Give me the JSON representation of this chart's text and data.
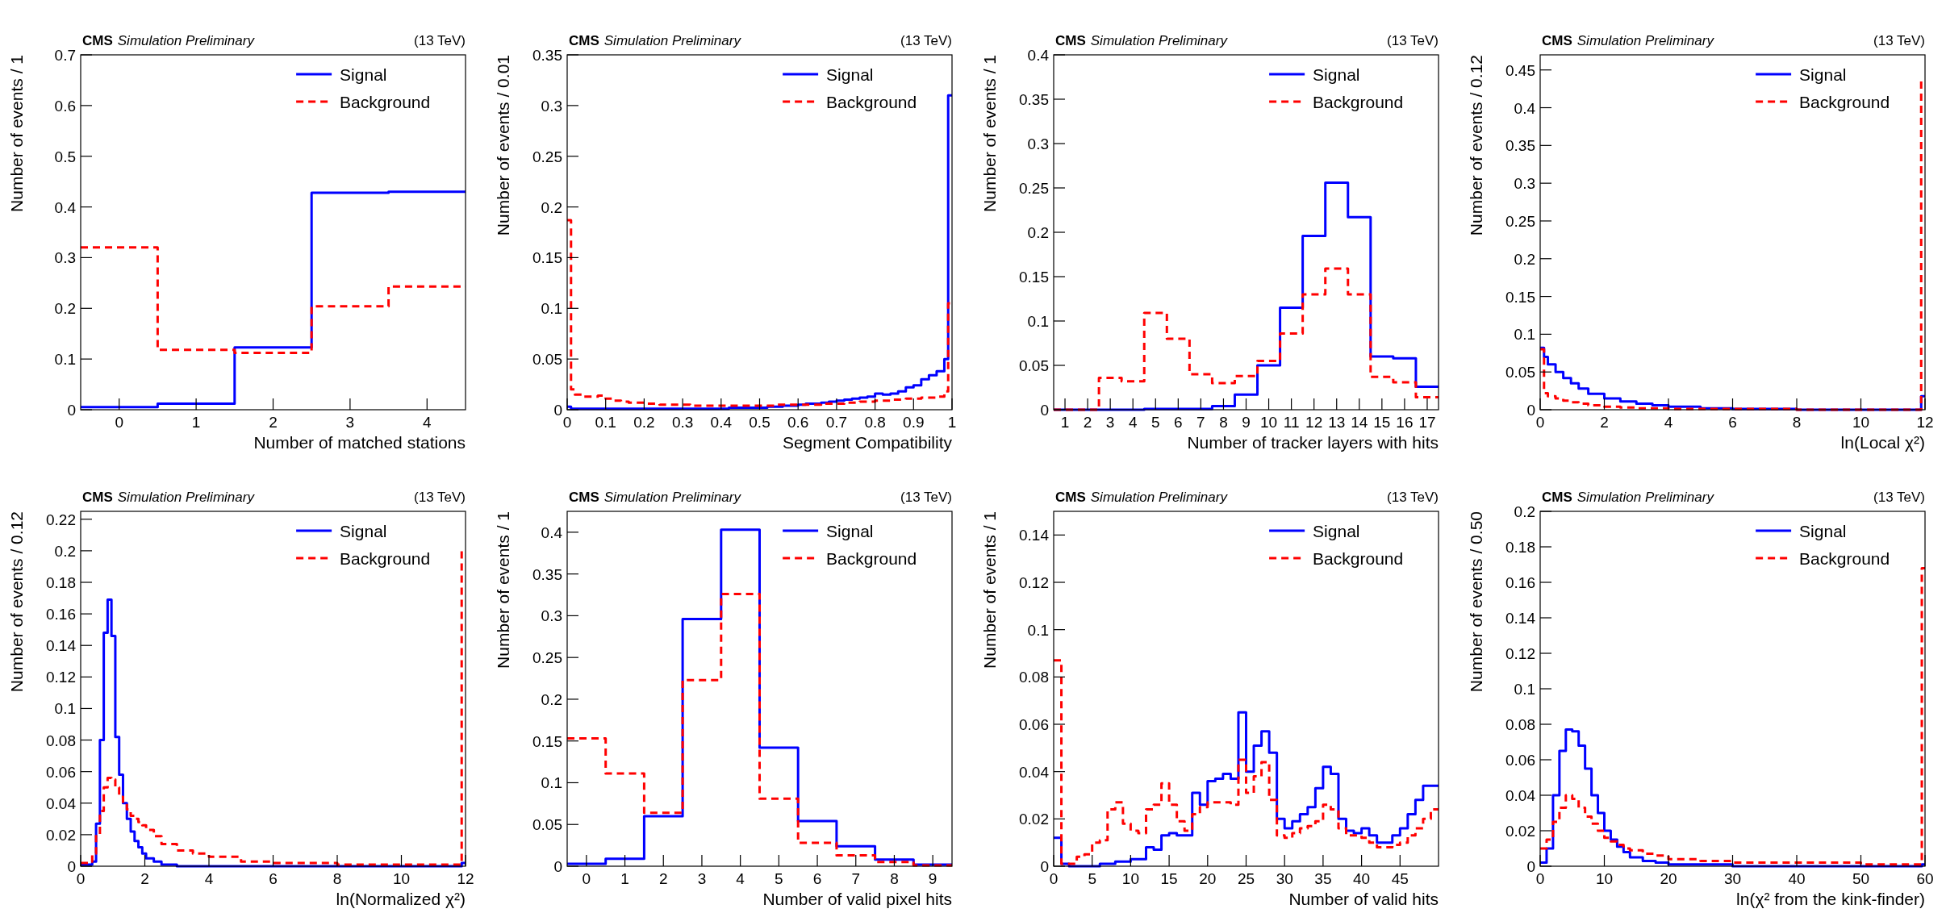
{
  "chart_data": [
    {
      "type": "histogram",
      "title": "CMS",
      "subtitle": "Simulation Preliminary",
      "annotations": [
        "(13 TeV)"
      ],
      "xlabel": "Number of matched stations",
      "ylabel": "Number of events / 1",
      "xlim": [
        -0.5,
        4.5
      ],
      "xticks": [
        0,
        1,
        2,
        3,
        4
      ],
      "ylim": [
        0,
        0.7
      ],
      "yticks": [
        0,
        0.1,
        0.2,
        0.3,
        0.4,
        0.5,
        0.6,
        0.7
      ],
      "legend": "top right",
      "bins": [
        -0.5,
        0.5,
        1.5,
        2.5,
        3.5,
        4.5
      ],
      "series": [
        {
          "name": "Signal",
          "color": "#0000ff",
          "line_style": "solid",
          "values": [
            0.005,
            0.012,
            0.123,
            0.428,
            0.43
          ]
        },
        {
          "name": "Background",
          "color": "#ff0000",
          "line_style": "dashed",
          "values": [
            0.32,
            0.118,
            0.112,
            0.204,
            0.243
          ]
        }
      ]
    },
    {
      "type": "histogram",
      "title": "CMS",
      "subtitle": "Simulation Preliminary",
      "annotations": [
        "(13 TeV)"
      ],
      "xlabel": "Segment Compatibility",
      "ylabel": "Number of events / 0.01",
      "xlim": [
        0,
        1
      ],
      "xticks": [
        0,
        0.1,
        0.2,
        0.3,
        0.4,
        0.5,
        0.6,
        0.7,
        0.8,
        0.9,
        1
      ],
      "ylim": [
        0,
        0.35
      ],
      "yticks": [
        0,
        0.05,
        0.1,
        0.15,
        0.2,
        0.25,
        0.3,
        0.35
      ],
      "legend": "top right",
      "bins": [
        0,
        0.01,
        0.02,
        0.04,
        0.06,
        0.08,
        0.1,
        0.12,
        0.14,
        0.16,
        0.18,
        0.2,
        0.22,
        0.24,
        0.26,
        0.28,
        0.3,
        0.32,
        0.34,
        0.36,
        0.38,
        0.4,
        0.42,
        0.44,
        0.46,
        0.48,
        0.5,
        0.52,
        0.54,
        0.56,
        0.58,
        0.6,
        0.62,
        0.64,
        0.66,
        0.68,
        0.7,
        0.72,
        0.74,
        0.76,
        0.78,
        0.8,
        0.82,
        0.84,
        0.86,
        0.88,
        0.9,
        0.92,
        0.94,
        0.96,
        0.98,
        0.99,
        1
      ],
      "series": [
        {
          "name": "Signal",
          "color": "#0000ff",
          "line_style": "solid",
          "values": [
            0.003,
            0.001,
            0.001,
            0.001,
            0.001,
            0.001,
            0.001,
            0.001,
            0.001,
            0.001,
            0.001,
            0.001,
            0.001,
            0.001,
            0.001,
            0.001,
            0.001,
            0.001,
            0.001,
            0.001,
            0.001,
            0.001,
            0.002,
            0.002,
            0.002,
            0.002,
            0.002,
            0.003,
            0.003,
            0.004,
            0.004,
            0.005,
            0.006,
            0.006,
            0.007,
            0.008,
            0.009,
            0.01,
            0.011,
            0.012,
            0.013,
            0.016,
            0.015,
            0.016,
            0.018,
            0.022,
            0.024,
            0.03,
            0.034,
            0.038,
            0.05,
            0.31
          ]
        },
        {
          "name": "Background",
          "color": "#ff0000",
          "line_style": "dashed",
          "values": [
            0.187,
            0.02,
            0.015,
            0.013,
            0.013,
            0.014,
            0.011,
            0.009,
            0.008,
            0.007,
            0.007,
            0.006,
            0.006,
            0.005,
            0.005,
            0.005,
            0.005,
            0.004,
            0.004,
            0.004,
            0.004,
            0.004,
            0.004,
            0.004,
            0.004,
            0.004,
            0.004,
            0.004,
            0.005,
            0.005,
            0.005,
            0.005,
            0.005,
            0.005,
            0.006,
            0.006,
            0.006,
            0.007,
            0.007,
            0.008,
            0.008,
            0.009,
            0.009,
            0.01,
            0.01,
            0.011,
            0.011,
            0.012,
            0.012,
            0.013,
            0.018,
            0.105
          ]
        }
      ]
    },
    {
      "type": "histogram",
      "title": "CMS",
      "subtitle": "Simulation Preliminary",
      "annotations": [
        "(13 TeV)"
      ],
      "xlabel": "Number of tracker layers with hits",
      "ylabel": "Number of events / 1",
      "xlim": [
        0.5,
        17.5
      ],
      "xticks": [
        1,
        2,
        3,
        4,
        5,
        6,
        7,
        8,
        9,
        10,
        11,
        12,
        13,
        14,
        15,
        16,
        17
      ],
      "ylim": [
        0,
        0.4
      ],
      "yticks": [
        0,
        0.05,
        0.1,
        0.15,
        0.2,
        0.25,
        0.3,
        0.35,
        0.4
      ],
      "legend": "top right",
      "bins": [
        0.5,
        1.5,
        2.5,
        3.5,
        4.5,
        5.5,
        6.5,
        7.5,
        8.5,
        9.5,
        10.5,
        11.5,
        12.5,
        13.5,
        14.5,
        15.5,
        16.5,
        17.5
      ],
      "series": [
        {
          "name": "Signal",
          "color": "#0000ff",
          "line_style": "solid",
          "values": [
            0,
            0,
            0,
            0,
            0.001,
            0.001,
            0.001,
            0.004,
            0.017,
            0.05,
            0.115,
            0.196,
            0.256,
            0.217,
            0.06,
            0.058,
            0.026
          ]
        },
        {
          "name": "Background",
          "color": "#ff0000",
          "line_style": "dashed",
          "values": [
            0,
            0,
            0.036,
            0.032,
            0.109,
            0.08,
            0.04,
            0.03,
            0.038,
            0.055,
            0.086,
            0.13,
            0.159,
            0.13,
            0.037,
            0.031,
            0.014
          ]
        }
      ]
    },
    {
      "type": "histogram",
      "title": "CMS",
      "subtitle": "Simulation Preliminary",
      "annotations": [
        "(13 TeV)"
      ],
      "xlabel": "ln(Local χ²)",
      "ylabel": "Number of events / 0.12",
      "xlim": [
        0,
        12
      ],
      "xticks": [
        0,
        2,
        4,
        6,
        8,
        10,
        12
      ],
      "ylim": [
        0,
        0.47
      ],
      "yticks": [
        0,
        0.05,
        0.1,
        0.15,
        0.2,
        0.25,
        0.3,
        0.35,
        0.4,
        0.45
      ],
      "legend": "top right",
      "bins": [
        0,
        0.12,
        0.24,
        0.48,
        0.72,
        0.96,
        1.2,
        1.5,
        2,
        2.5,
        3,
        3.5,
        4,
        5,
        6,
        8,
        10,
        11.88,
        12
      ],
      "series": [
        {
          "name": "Signal",
          "color": "#0000ff",
          "line_style": "solid",
          "values": [
            0.082,
            0.07,
            0.06,
            0.05,
            0.042,
            0.035,
            0.028,
            0.021,
            0.015,
            0.011,
            0.008,
            0.006,
            0.004,
            0.002,
            0.001,
            0,
            0,
            0.018
          ]
        },
        {
          "name": "Background",
          "color": "#ff0000",
          "line_style": "dashed",
          "values": [
            0.08,
            0.022,
            0.018,
            0.015,
            0.012,
            0.01,
            0.008,
            0.006,
            0.004,
            0.003,
            0.002,
            0.002,
            0.001,
            0.001,
            0.001,
            0,
            0,
            0.435
          ]
        }
      ]
    },
    {
      "type": "histogram",
      "title": "CMS",
      "subtitle": "Simulation Preliminary",
      "annotations": [
        "(13 TeV)"
      ],
      "xlabel": "ln(Normalized χ²)",
      "ylabel": "Number of events / 0.12",
      "xlim": [
        0,
        12
      ],
      "xticks": [
        0,
        2,
        4,
        6,
        8,
        10,
        12
      ],
      "ylim": [
        0,
        0.225
      ],
      "yticks": [
        0,
        0.02,
        0.04,
        0.06,
        0.08,
        0.1,
        0.12,
        0.14,
        0.16,
        0.18,
        0.2,
        0.22
      ],
      "legend": "top right",
      "bins": [
        0,
        0.24,
        0.36,
        0.48,
        0.6,
        0.72,
        0.84,
        0.96,
        1.08,
        1.2,
        1.32,
        1.44,
        1.56,
        1.68,
        1.8,
        1.92,
        2.04,
        2.28,
        2.52,
        3,
        3.5,
        4,
        5,
        6,
        8,
        10,
        11.88,
        12
      ],
      "series": [
        {
          "name": "Signal",
          "color": "#0000ff",
          "line_style": "solid",
          "values": [
            0.001,
            0.001,
            0.003,
            0.027,
            0.08,
            0.148,
            0.169,
            0.146,
            0.082,
            0.058,
            0.04,
            0.03,
            0.022,
            0.016,
            0.012,
            0.008,
            0.005,
            0.003,
            0.001,
            0,
            0,
            0,
            0,
            0,
            0,
            0,
            0.002
          ]
        },
        {
          "name": "Background",
          "color": "#ff0000",
          "line_style": "dashed",
          "values": [
            0.002,
            0.003,
            0.008,
            0.02,
            0.035,
            0.05,
            0.056,
            0.055,
            0.05,
            0.044,
            0.04,
            0.036,
            0.032,
            0.03,
            0.028,
            0.026,
            0.023,
            0.019,
            0.014,
            0.01,
            0.008,
            0.006,
            0.003,
            0.002,
            0.001,
            0.001,
            0.2
          ]
        }
      ]
    },
    {
      "type": "histogram",
      "title": "CMS",
      "subtitle": "Simulation Preliminary",
      "annotations": [
        "(13 TeV)"
      ],
      "xlabel": "Number of valid pixel hits",
      "ylabel": "Number of events / 1",
      "xlim": [
        -0.5,
        9.5
      ],
      "xticks": [
        0,
        1,
        2,
        3,
        4,
        5,
        6,
        7,
        8,
        9
      ],
      "ylim": [
        0,
        0.425
      ],
      "yticks": [
        0,
        0.05,
        0.1,
        0.15,
        0.2,
        0.25,
        0.3,
        0.35,
        0.4
      ],
      "legend": "top right",
      "bins": [
        -0.5,
        0.5,
        1.5,
        2.5,
        3.5,
        4.5,
        5.5,
        6.5,
        7.5,
        8.5,
        9.5
      ],
      "series": [
        {
          "name": "Signal",
          "color": "#0000ff",
          "line_style": "solid",
          "values": [
            0.003,
            0.009,
            0.06,
            0.296,
            0.403,
            0.142,
            0.054,
            0.024,
            0.008,
            0.002
          ]
        },
        {
          "name": "Background",
          "color": "#ff0000",
          "line_style": "dashed",
          "values": [
            0.153,
            0.111,
            0.064,
            0.223,
            0.326,
            0.081,
            0.028,
            0.013,
            0.005,
            0.001
          ]
        }
      ]
    },
    {
      "type": "histogram",
      "title": "CMS",
      "subtitle": "Simulation Preliminary",
      "annotations": [
        "(13 TeV)"
      ],
      "xlabel": "Number of valid hits",
      "ylabel": "Number of events / 1",
      "xlim": [
        0,
        50
      ],
      "xticks": [
        0,
        5,
        10,
        15,
        20,
        25,
        30,
        35,
        40,
        45
      ],
      "ylim": [
        0,
        0.15
      ],
      "yticks": [
        0,
        0.02,
        0.04,
        0.06,
        0.08,
        0.1,
        0.12,
        0.14
      ],
      "legend": "top right",
      "bins": [
        0,
        1,
        2,
        3,
        4,
        5,
        6,
        7,
        8,
        9,
        10,
        11,
        12,
        13,
        14,
        15,
        16,
        17,
        18,
        19,
        20,
        21,
        22,
        23,
        24,
        25,
        26,
        27,
        28,
        29,
        30,
        31,
        32,
        33,
        34,
        35,
        36,
        37,
        38,
        39,
        40,
        41,
        42,
        43,
        44,
        45,
        46,
        47,
        48,
        49,
        50
      ],
      "series": [
        {
          "name": "Signal",
          "color": "#0000ff",
          "line_style": "solid",
          "values": [
            0.012,
            0.001,
            0,
            0,
            0,
            0,
            0.001,
            0.001,
            0.002,
            0.002,
            0.003,
            0.003,
            0.008,
            0.007,
            0.013,
            0.014,
            0.013,
            0.013,
            0.031,
            0.026,
            0.036,
            0.037,
            0.039,
            0.037,
            0.065,
            0.04,
            0.051,
            0.057,
            0.048,
            0.02,
            0.016,
            0.019,
            0.022,
            0.025,
            0.033,
            0.042,
            0.039,
            0.02,
            0.015,
            0.014,
            0.016,
            0.013,
            0.01,
            0.01,
            0.013,
            0.016,
            0.022,
            0.028,
            0.034,
            0.034
          ]
        },
        {
          "name": "Background",
          "color": "#ff0000",
          "line_style": "dashed",
          "values": [
            0.087,
            0.001,
            0.001,
            0.004,
            0.005,
            0.01,
            0.011,
            0.024,
            0.027,
            0.018,
            0.015,
            0.014,
            0.024,
            0.026,
            0.035,
            0.026,
            0.019,
            0.015,
            0.022,
            0.025,
            0.027,
            0.027,
            0.027,
            0.026,
            0.045,
            0.031,
            0.038,
            0.044,
            0.028,
            0.013,
            0.012,
            0.014,
            0.016,
            0.017,
            0.019,
            0.026,
            0.024,
            0.016,
            0.013,
            0.013,
            0.012,
            0.01,
            0.008,
            0.008,
            0.009,
            0.01,
            0.013,
            0.016,
            0.02,
            0.024
          ]
        }
      ]
    },
    {
      "type": "histogram",
      "title": "CMS",
      "subtitle": "Simulation Preliminary",
      "annotations": [
        "(13 TeV)"
      ],
      "xlabel": "ln(χ² from the kink-finder)",
      "ylabel": "Number of events / 0.50",
      "xlim": [
        0,
        60
      ],
      "xticks": [
        0,
        10,
        20,
        30,
        40,
        50,
        60
      ],
      "ylim": [
        0,
        0.2
      ],
      "yticks": [
        0,
        0.02,
        0.04,
        0.06,
        0.08,
        0.1,
        0.12,
        0.14,
        0.16,
        0.18,
        0.2
      ],
      "legend": "top right",
      "bins": [
        0,
        1,
        2,
        3,
        4,
        5,
        6,
        7,
        8,
        9,
        10,
        11,
        12,
        13,
        14,
        16,
        18,
        20,
        25,
        30,
        40,
        50,
        59.5,
        60
      ],
      "series": [
        {
          "name": "Signal",
          "color": "#0000ff",
          "line_style": "solid",
          "values": [
            0.002,
            0.01,
            0.04,
            0.065,
            0.077,
            0.076,
            0.068,
            0.055,
            0.04,
            0.03,
            0.02,
            0.015,
            0.011,
            0.008,
            0.005,
            0.003,
            0.002,
            0.001,
            0.001,
            0,
            0,
            0,
            0.001
          ]
        },
        {
          "name": "Background",
          "color": "#ff0000",
          "line_style": "dashed",
          "values": [
            0.01,
            0.015,
            0.025,
            0.033,
            0.04,
            0.038,
            0.033,
            0.028,
            0.024,
            0.02,
            0.016,
            0.014,
            0.012,
            0.01,
            0.009,
            0.007,
            0.006,
            0.004,
            0.003,
            0.002,
            0.002,
            0.001,
            0.168
          ]
        }
      ]
    }
  ]
}
